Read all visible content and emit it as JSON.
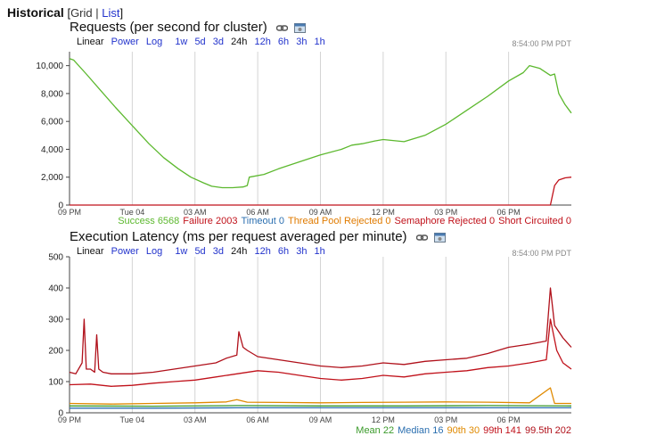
{
  "header": {
    "title": "Historical",
    "bracket_open": "[",
    "grid": "Grid",
    "sep": "|",
    "list": "List",
    "bracket_close": "]"
  },
  "colors": {
    "success": "#5cb82e",
    "failure": "#c0111a",
    "timeout": "#2b6fb0",
    "threadpool": "#e07b00",
    "semaphore": "#c0111a",
    "shortcircuit": "#c0111a",
    "mean": "#3a9a2a",
    "median": "#2b6fb0",
    "p90": "#e08a00",
    "p99": "#c0111a",
    "p995": "#b0101a",
    "link": "#2233cc"
  },
  "charts": [
    {
      "title": "Requests (per second for cluster)",
      "icons": [
        "link-icon",
        "calendar-icon"
      ],
      "scales": [
        "Linear",
        "Power",
        "Log"
      ],
      "ranges": [
        "1w",
        "5d",
        "3d",
        "24h",
        "12h",
        "6h",
        "3h",
        "1h"
      ],
      "timestamp": "8:54:00 PM PDT",
      "legend": [
        {
          "label": "Success",
          "value": "6568",
          "color": "#5cb82e"
        },
        {
          "label": "Failure",
          "value": "2003",
          "color": "#c0111a"
        },
        {
          "label": "Timeout",
          "value": "0",
          "color": "#2b6fb0"
        },
        {
          "label": "Thread Pool Rejected",
          "value": "0",
          "color": "#e07b00"
        },
        {
          "label": "Semaphore Rejected",
          "value": "0",
          "color": "#c0111a"
        },
        {
          "label": "Short Circuited",
          "value": "0",
          "color": "#c0111a"
        }
      ]
    },
    {
      "title": "Execution Latency (ms per request averaged per minute)",
      "icons": [
        "link-icon",
        "calendar-icon"
      ],
      "scales": [
        "Linear",
        "Power",
        "Log"
      ],
      "ranges": [
        "1w",
        "5d",
        "3d",
        "24h",
        "12h",
        "6h",
        "3h",
        "1h"
      ],
      "timestamp": "8:54:00 PM PDT",
      "legend": [
        {
          "label": "Mean",
          "value": "22",
          "color": "#3a9a2a"
        },
        {
          "label": "Median",
          "value": "16",
          "color": "#2b6fb0"
        },
        {
          "label": "90th",
          "value": "30",
          "color": "#e08a00"
        },
        {
          "label": "99th",
          "value": "141",
          "color": "#c0111a"
        },
        {
          "label": "99.5th",
          "value": "202",
          "color": "#b0101a"
        }
      ]
    }
  ],
  "chart_data": [
    {
      "type": "line",
      "title": "Requests (per second for cluster)",
      "x_ticks": [
        "09 PM",
        "Tue 04",
        "03 AM",
        "06 AM",
        "09 AM",
        "12 PM",
        "03 PM",
        "06 PM"
      ],
      "x_range": [
        0,
        24
      ],
      "ylim": [
        0,
        11000
      ],
      "y_ticks": [
        "0",
        "2,000",
        "4,000",
        "6,000",
        "8,000",
        "10,000"
      ],
      "y_tick_values": [
        0,
        2000,
        4000,
        6000,
        8000,
        10000
      ],
      "series": [
        {
          "name": "Success",
          "color": "#5cb82e",
          "x": [
            0,
            0.2,
            0.8,
            1.5,
            2.2,
            3,
            3.8,
            4.5,
            5.2,
            5.8,
            6.4,
            6.8,
            7.3,
            7.8,
            8.3,
            8.5,
            8.6,
            9.3,
            10,
            11,
            12,
            13,
            13.5,
            14,
            14.6,
            15,
            16,
            17,
            18,
            19,
            20,
            21,
            21.7,
            22,
            22.5,
            23,
            23.2,
            23.4,
            23.7,
            24
          ],
          "y": [
            10500,
            10400,
            9400,
            8200,
            7000,
            5700,
            4400,
            3400,
            2600,
            2000,
            1600,
            1350,
            1250,
            1250,
            1300,
            1400,
            2000,
            2200,
            2600,
            3100,
            3600,
            4000,
            4300,
            4400,
            4600,
            4700,
            4550,
            5000,
            5800,
            6800,
            7800,
            8900,
            9500,
            10000,
            9800,
            9300,
            9400,
            8000,
            7200,
            6600
          ]
        },
        {
          "name": "Failure",
          "color": "#c0111a",
          "x": [
            0,
            5,
            10,
            15,
            20,
            23.0,
            23.2,
            23.4,
            23.7,
            24
          ],
          "y": [
            0,
            0,
            0,
            0,
            0,
            0,
            1400,
            1800,
            1950,
            2000
          ]
        }
      ]
    },
    {
      "type": "line",
      "title": "Execution Latency (ms per request averaged per minute)",
      "x_ticks": [
        "09 PM",
        "Tue 04",
        "03 AM",
        "06 AM",
        "09 AM",
        "12 PM",
        "03 PM",
        "06 PM"
      ],
      "x_range": [
        0,
        24
      ],
      "ylim": [
        0,
        500
      ],
      "y_ticks": [
        "0",
        "100",
        "200",
        "300",
        "400",
        "500"
      ],
      "y_tick_values": [
        0,
        100,
        200,
        300,
        400,
        500
      ],
      "series": [
        {
          "name": "99.5th",
          "color": "#b0101a",
          "x": [
            0,
            0.3,
            0.6,
            0.7,
            0.8,
            1.0,
            1.2,
            1.3,
            1.4,
            1.6,
            2,
            3,
            4,
            5,
            6,
            7,
            7.5,
            8.0,
            8.1,
            8.3,
            8.5,
            9,
            10,
            11,
            12,
            13,
            14,
            15,
            16,
            17,
            18,
            19,
            20,
            21,
            22,
            22.8,
            23.0,
            23.2,
            23.4,
            23.6,
            23.8,
            24
          ],
          "y": [
            130,
            125,
            160,
            300,
            140,
            140,
            130,
            250,
            140,
            130,
            125,
            125,
            130,
            140,
            150,
            160,
            175,
            185,
            260,
            210,
            200,
            180,
            170,
            160,
            150,
            145,
            150,
            160,
            155,
            165,
            170,
            175,
            190,
            210,
            220,
            230,
            400,
            280,
            260,
            240,
            225,
            210
          ]
        },
        {
          "name": "99th",
          "color": "#c0111a",
          "x": [
            0,
            1,
            2,
            3,
            4,
            5,
            6,
            7,
            8,
            9,
            10,
            11,
            12,
            13,
            14,
            15,
            16,
            17,
            18,
            19,
            20,
            21,
            22,
            22.8,
            23.0,
            23.3,
            23.6,
            24
          ],
          "y": [
            90,
            92,
            85,
            88,
            95,
            100,
            105,
            115,
            125,
            135,
            130,
            120,
            110,
            105,
            110,
            120,
            115,
            125,
            130,
            135,
            145,
            150,
            160,
            170,
            300,
            200,
            160,
            140
          ]
        },
        {
          "name": "90th",
          "color": "#e08a00",
          "x": [
            0,
            2,
            4,
            6,
            7.5,
            8,
            8.5,
            10,
            12,
            14,
            16,
            18,
            20,
            22,
            23.0,
            23.2,
            24
          ],
          "y": [
            30,
            28,
            30,
            32,
            35,
            42,
            34,
            33,
            32,
            33,
            34,
            35,
            34,
            32,
            80,
            30,
            30
          ]
        },
        {
          "name": "Mean",
          "color": "#3a9a2a",
          "x": [
            0,
            4,
            8,
            12,
            16,
            20,
            24
          ],
          "y": [
            22,
            21,
            23,
            22,
            22,
            23,
            22
          ]
        },
        {
          "name": "Median",
          "color": "#2b6fb0",
          "x": [
            0,
            4,
            8,
            12,
            16,
            20,
            24
          ],
          "y": [
            15,
            15,
            16,
            16,
            16,
            16,
            16
          ]
        }
      ]
    }
  ]
}
